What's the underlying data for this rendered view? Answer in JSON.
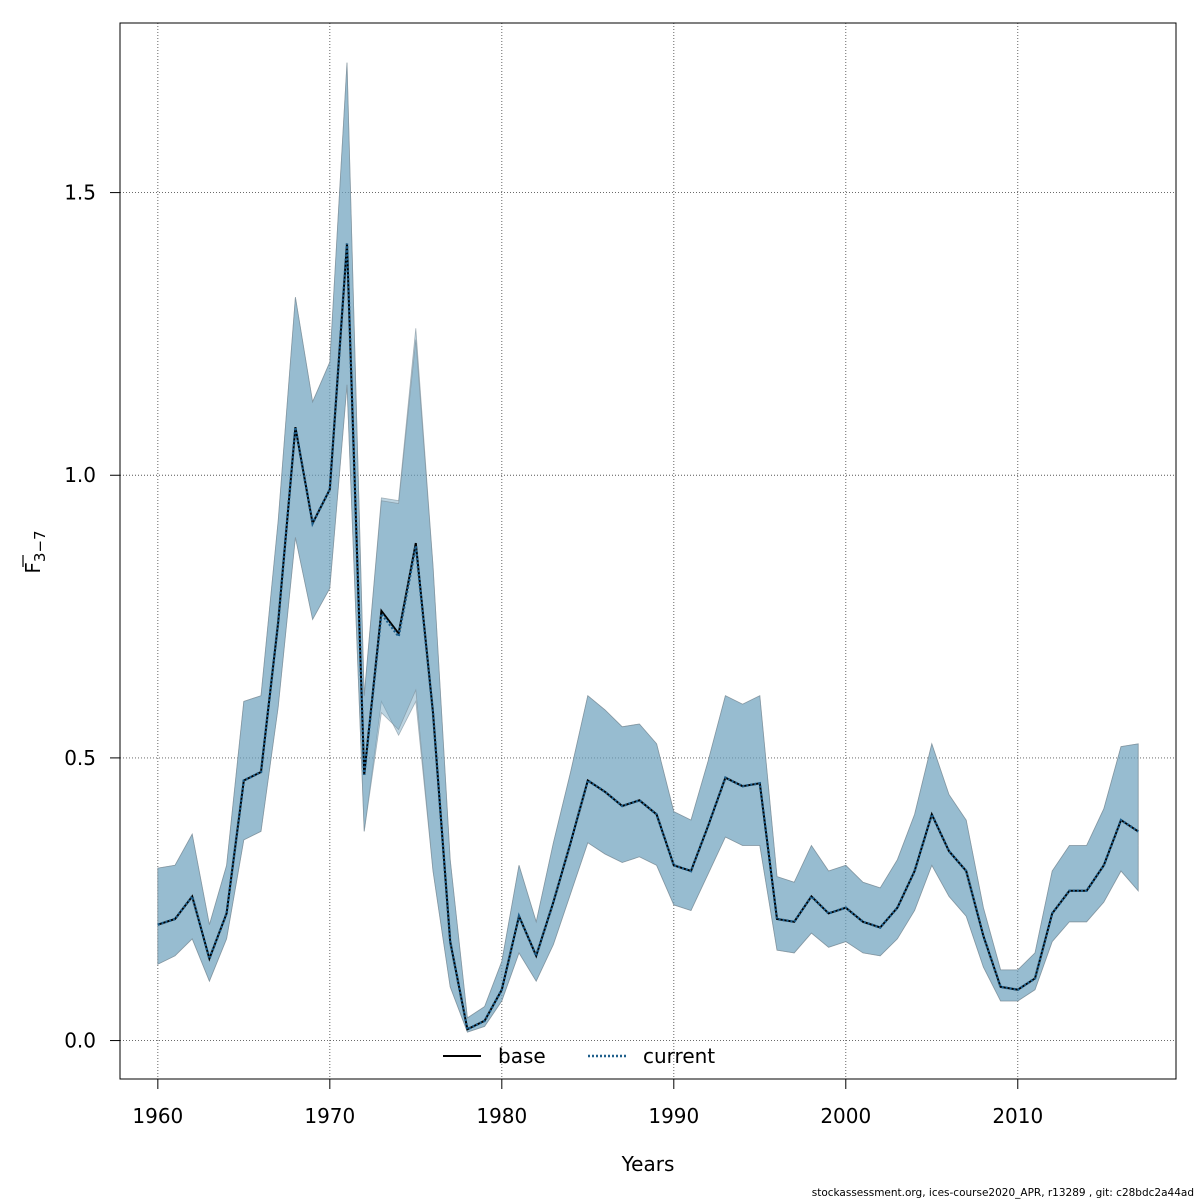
{
  "chart_data": {
    "type": "line",
    "xlabel": "Years",
    "ylabel": {
      "base": "F",
      "subscript": "3−7"
    },
    "xlim": [
      1957.8,
      2019.2
    ],
    "ylim": [
      -0.068,
      1.8
    ],
    "x_ticks": [
      1960,
      1970,
      1980,
      1990,
      2000,
      2010
    ],
    "y_ticks": [
      0.0,
      0.5,
      1.0,
      1.5
    ],
    "y_tick_labels": [
      "0.0",
      "0.5",
      "1.0",
      "1.5"
    ],
    "grid": true,
    "legend_position": "bottom",
    "x": [
      1960,
      1961,
      1962,
      1963,
      1964,
      1965,
      1966,
      1967,
      1968,
      1969,
      1970,
      1971,
      1972,
      1973,
      1974,
      1975,
      1976,
      1977,
      1978,
      1979,
      1980,
      1981,
      1982,
      1983,
      1984,
      1985,
      1986,
      1987,
      1988,
      1989,
      1990,
      1991,
      1992,
      1993,
      1994,
      1995,
      1996,
      1997,
      1998,
      1999,
      2000,
      2001,
      2002,
      2003,
      2004,
      2005,
      2006,
      2007,
      2008,
      2009,
      2010,
      2011,
      2012,
      2013,
      2014,
      2015,
      2016,
      2017
    ],
    "series": [
      {
        "name": "base",
        "color": "#000000",
        "dash": "solid",
        "values": [
          0.205,
          0.215,
          0.255,
          0.145,
          0.225,
          0.46,
          0.475,
          0.74,
          1.085,
          0.915,
          0.975,
          1.41,
          0.47,
          0.76,
          0.72,
          0.88,
          0.58,
          0.175,
          0.02,
          0.035,
          0.09,
          0.22,
          0.15,
          0.245,
          0.35,
          0.46,
          0.44,
          0.415,
          0.425,
          0.4,
          0.31,
          0.3,
          0.38,
          0.465,
          0.45,
          0.455,
          0.215,
          0.21,
          0.255,
          0.225,
          0.235,
          0.21,
          0.2,
          0.235,
          0.3,
          0.4,
          0.335,
          0.3,
          0.185,
          0.095,
          0.09,
          0.11,
          0.225,
          0.265,
          0.265,
          0.31,
          0.39,
          0.37
        ],
        "lower": [
          0.135,
          0.15,
          0.18,
          0.105,
          0.18,
          0.355,
          0.37,
          0.59,
          0.89,
          0.745,
          0.8,
          1.16,
          0.37,
          0.6,
          0.54,
          0.6,
          0.3,
          0.095,
          0.015,
          0.025,
          0.07,
          0.155,
          0.105,
          0.17,
          0.26,
          0.35,
          0.33,
          0.315,
          0.325,
          0.31,
          0.24,
          0.23,
          0.295,
          0.36,
          0.345,
          0.345,
          0.16,
          0.155,
          0.19,
          0.165,
          0.175,
          0.155,
          0.15,
          0.18,
          0.23,
          0.31,
          0.255,
          0.22,
          0.13,
          0.07,
          0.07,
          0.09,
          0.175,
          0.21,
          0.21,
          0.245,
          0.3,
          0.265
        ],
        "upper": [
          0.305,
          0.31,
          0.365,
          0.205,
          0.31,
          0.6,
          0.61,
          0.92,
          1.315,
          1.13,
          1.2,
          1.73,
          0.61,
          0.96,
          0.955,
          1.26,
          0.84,
          0.32,
          0.04,
          0.06,
          0.14,
          0.31,
          0.21,
          0.35,
          0.475,
          0.61,
          0.585,
          0.555,
          0.56,
          0.525,
          0.405,
          0.39,
          0.495,
          0.61,
          0.595,
          0.61,
          0.29,
          0.28,
          0.345,
          0.3,
          0.31,
          0.28,
          0.27,
          0.32,
          0.4,
          0.525,
          0.435,
          0.39,
          0.235,
          0.125,
          0.125,
          0.155,
          0.3,
          0.345,
          0.345,
          0.41,
          0.52,
          0.525
        ]
      },
      {
        "name": "current",
        "color": "#1f5f8b",
        "dash": "dotted",
        "values": [
          0.205,
          0.215,
          0.255,
          0.145,
          0.225,
          0.46,
          0.475,
          0.74,
          1.085,
          0.915,
          0.975,
          1.41,
          0.47,
          0.755,
          0.715,
          0.875,
          0.58,
          0.175,
          0.02,
          0.035,
          0.09,
          0.22,
          0.15,
          0.245,
          0.35,
          0.46,
          0.44,
          0.415,
          0.425,
          0.4,
          0.31,
          0.3,
          0.38,
          0.465,
          0.45,
          0.455,
          0.215,
          0.21,
          0.255,
          0.225,
          0.235,
          0.21,
          0.2,
          0.235,
          0.3,
          0.4,
          0.335,
          0.3,
          0.185,
          0.095,
          0.09,
          0.11,
          0.225,
          0.265,
          0.265,
          0.31,
          0.39,
          0.37
        ],
        "lower": [
          0.135,
          0.15,
          0.18,
          0.105,
          0.18,
          0.355,
          0.37,
          0.59,
          0.89,
          0.745,
          0.8,
          1.16,
          0.37,
          0.58,
          0.55,
          0.62,
          0.3,
          0.095,
          0.015,
          0.025,
          0.07,
          0.155,
          0.105,
          0.17,
          0.26,
          0.35,
          0.33,
          0.315,
          0.325,
          0.31,
          0.24,
          0.23,
          0.295,
          0.36,
          0.345,
          0.345,
          0.16,
          0.155,
          0.19,
          0.165,
          0.175,
          0.155,
          0.15,
          0.18,
          0.23,
          0.31,
          0.255,
          0.22,
          0.13,
          0.07,
          0.07,
          0.09,
          0.175,
          0.21,
          0.21,
          0.245,
          0.3,
          0.265
        ],
        "upper": [
          0.305,
          0.31,
          0.365,
          0.205,
          0.31,
          0.6,
          0.61,
          0.92,
          1.315,
          1.13,
          1.2,
          1.73,
          0.61,
          0.955,
          0.95,
          1.24,
          0.84,
          0.32,
          0.04,
          0.06,
          0.14,
          0.31,
          0.21,
          0.35,
          0.475,
          0.61,
          0.585,
          0.555,
          0.56,
          0.525,
          0.405,
          0.39,
          0.495,
          0.61,
          0.595,
          0.61,
          0.29,
          0.28,
          0.345,
          0.3,
          0.31,
          0.28,
          0.27,
          0.32,
          0.4,
          0.525,
          0.435,
          0.39,
          0.235,
          0.125,
          0.125,
          0.155,
          0.3,
          0.345,
          0.345,
          0.41,
          0.52,
          0.525
        ]
      }
    ],
    "band_color": "#6b9fbd"
  },
  "footer": "stockassessment.org, ices-course2020_APR, r13289 , git: c28bdc2a44ad"
}
